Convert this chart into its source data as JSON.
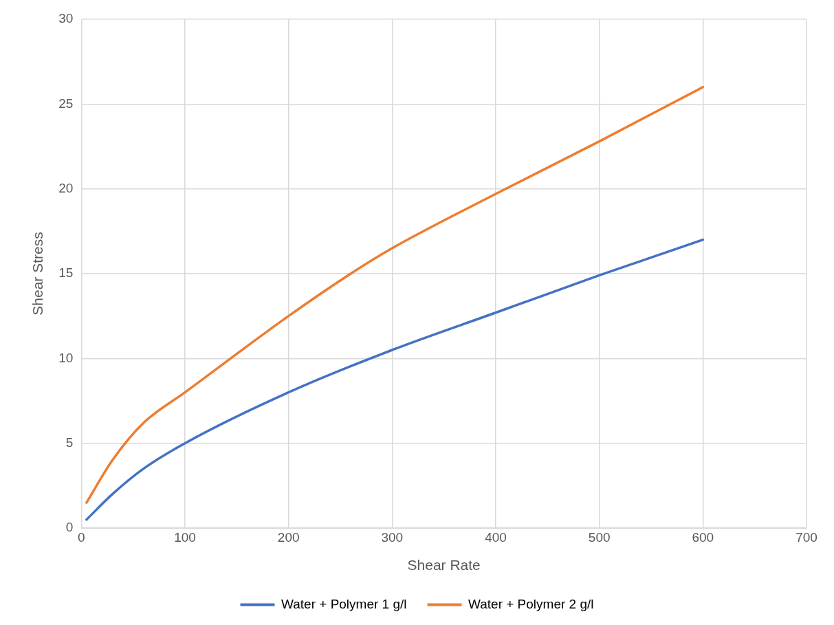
{
  "chart_data": {
    "type": "line",
    "xlabel": "Shear Rate",
    "ylabel": "Shear Stress",
    "xlim": [
      0,
      700
    ],
    "xticks": [
      0,
      100,
      200,
      300,
      400,
      500,
      600,
      700
    ],
    "ylim": [
      0,
      30
    ],
    "yticks": [
      0,
      5,
      10,
      15,
      20,
      25,
      30
    ],
    "grid": true,
    "legend": "bottom",
    "marker": "none",
    "line_style": "solid",
    "series": [
      {
        "name": "Water + Polymer 1 g/l",
        "color": "#4472c4",
        "x": [
          5,
          30,
          60,
          100,
          200,
          300,
          400,
          500,
          600
        ],
        "values": [
          0.5,
          2,
          3.5,
          5,
          8,
          10.5,
          12.7,
          14.9,
          17
        ]
      },
      {
        "name": "Water + Polymer 2 g/l",
        "color": "#ed7d31",
        "x": [
          5,
          30,
          60,
          100,
          200,
          260,
          300,
          400,
          500,
          600
        ],
        "values": [
          1.5,
          4,
          6.2,
          8,
          12.5,
          15,
          16.5,
          19.7,
          22.8,
          26
        ]
      }
    ]
  }
}
